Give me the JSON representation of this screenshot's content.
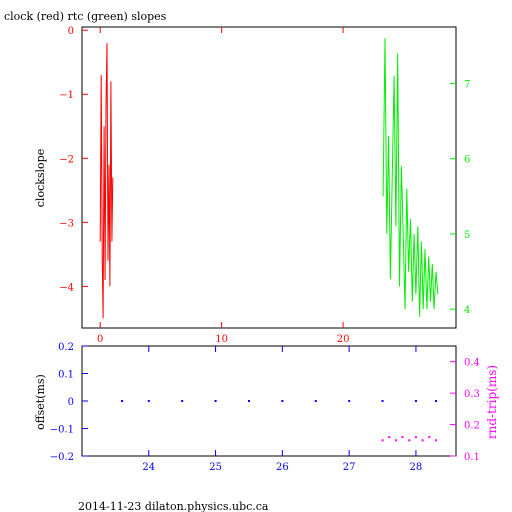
{
  "chart_data": [
    {
      "type": "line",
      "title": "clock (red) rtc (green) slopes",
      "xlabel": "",
      "ylabel": "clockslope",
      "xlim": [
        -1.5,
        29.3
      ],
      "ylim": [
        -4.65,
        0.05
      ],
      "x_ticks": [
        0,
        10,
        20
      ],
      "y_ticks": [
        0,
        -1,
        -2,
        -3,
        -4
      ],
      "right_axis": {
        "ylabel": "",
        "ylim": [
          3.75,
          7.75
        ],
        "ticks": [
          4,
          5,
          6,
          7
        ]
      },
      "grid": false,
      "series": [
        {
          "axis": "left",
          "color": "#ff0000",
          "x": [
            0.0,
            0.08,
            0.16,
            0.24,
            0.32,
            0.4,
            0.48,
            0.56,
            0.64,
            0.72,
            0.8,
            0.88,
            0.96,
            1.04
          ],
          "y": [
            -3.3,
            -0.7,
            -3.5,
            -4.5,
            -1.5,
            -3.9,
            -1.2,
            -0.2,
            -3.6,
            -2.1,
            -4.0,
            -0.8,
            -3.3,
            -2.3
          ]
        },
        {
          "axis": "right",
          "color": "#00ee00",
          "x": [
            23.3,
            23.45,
            23.6,
            23.75,
            23.9,
            24.05,
            24.2,
            24.35,
            24.5,
            24.65,
            24.8,
            24.95,
            25.1,
            25.25,
            25.4,
            25.55,
            25.7,
            25.85,
            26.0,
            26.15,
            26.3,
            26.45,
            26.6,
            26.75,
            26.9,
            27.05,
            27.2,
            27.35,
            27.5,
            27.65,
            27.8
          ],
          "y": [
            5.5,
            7.6,
            5.0,
            6.3,
            4.4,
            5.8,
            7.1,
            5.1,
            7.4,
            4.3,
            5.9,
            5.0,
            4.0,
            5.6,
            4.5,
            5.2,
            4.1,
            5.0,
            4.2,
            5.1,
            3.9,
            4.9,
            4.0,
            4.8,
            4.0,
            4.7,
            4.1,
            4.6,
            4.0,
            4.5,
            4.2
          ]
        }
      ]
    },
    {
      "type": "scatter",
      "xlabel": "",
      "ylabel": "offset(ms)",
      "xlim": [
        23.0,
        28.6
      ],
      "ylim": [
        -0.2,
        0.2
      ],
      "x_ticks": [
        24,
        25,
        26,
        27,
        28
      ],
      "y_ticks": [
        0.2,
        0.1,
        0,
        -0.1,
        -0.2
      ],
      "right_axis": {
        "ylabel": "rnd-trip(ms)",
        "ylim": [
          0.1,
          0.45
        ],
        "ticks": [
          0.1,
          0.2,
          0.3,
          0.4
        ]
      },
      "grid": false,
      "series": [
        {
          "axis": "left",
          "color": "#0000ff",
          "x": [
            23.6,
            24.0,
            24.5,
            25.0,
            25.5,
            26.0,
            26.5,
            27.0,
            27.5,
            28.0,
            28.3
          ],
          "y": [
            0.0,
            0.0,
            0.0,
            0.0,
            0.0,
            0.0,
            0.0,
            0.0,
            0.0,
            0.0,
            0.0
          ]
        },
        {
          "axis": "right",
          "color": "#ff00ff",
          "x": [
            27.5,
            27.6,
            27.7,
            27.8,
            27.9,
            28.0,
            28.1,
            28.2,
            28.3
          ],
          "y": [
            0.15,
            0.16,
            0.15,
            0.16,
            0.15,
            0.16,
            0.15,
            0.16,
            0.15
          ]
        }
      ]
    }
  ],
  "footer": "2014-11-23  dilaton.physics.ubc.ca"
}
